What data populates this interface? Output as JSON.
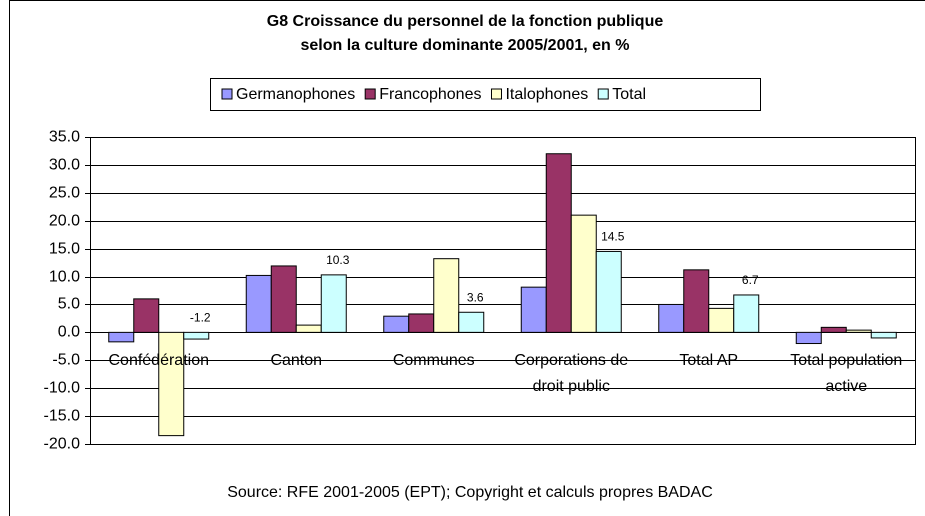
{
  "chart_data": {
    "type": "bar",
    "title": "G8 Croissance du personnel de la fonction publique",
    "subtitle": "selon la culture dominante 2005/2001, en %",
    "source": "Source: RFE 2001-2005 (EPT); Copyright et calculs propres BADAC",
    "categories": [
      "Confédération",
      "Canton",
      "Communes",
      "Corporations de droit public",
      "Total AP",
      "Total population active"
    ],
    "series": [
      {
        "name": "Germanophones",
        "color": "#9999ff",
        "values": [
          -1.7,
          10.2,
          2.9,
          8.1,
          5.0,
          -2.0
        ]
      },
      {
        "name": "Francophones",
        "color": "#993366",
        "values": [
          6.0,
          11.9,
          3.3,
          32.0,
          11.2,
          0.9
        ]
      },
      {
        "name": "Italophones",
        "color": "#ffffcc",
        "values": [
          -18.5,
          1.3,
          13.2,
          21.0,
          4.3,
          0.4
        ]
      },
      {
        "name": "Total",
        "color": "#ccffff",
        "values": [
          -1.2,
          10.3,
          3.6,
          14.5,
          6.7,
          -1.0
        ],
        "value_labels": [
          "-1.2",
          "10.3",
          "3.6",
          "14.5",
          "6.7",
          null
        ]
      }
    ],
    "ylim": [
      -20,
      35
    ],
    "yticks": [
      {
        "value": -20,
        "label": "-20.0"
      },
      {
        "value": -15,
        "label": "-15.0"
      },
      {
        "value": -10,
        "label": "-10.0"
      },
      {
        "value": -5,
        "label": "-5.0"
      },
      {
        "value": 0,
        "label": "0.0"
      },
      {
        "value": 5,
        "label": "5.0"
      },
      {
        "value": 10,
        "label": "10.0"
      },
      {
        "value": 15,
        "label": "15.0"
      },
      {
        "value": 20,
        "label": "20.0"
      },
      {
        "value": 25,
        "label": "25.0"
      },
      {
        "value": 30,
        "label": "30.0"
      },
      {
        "value": 35,
        "label": "35.0"
      }
    ],
    "grid": true,
    "legend": "top"
  }
}
